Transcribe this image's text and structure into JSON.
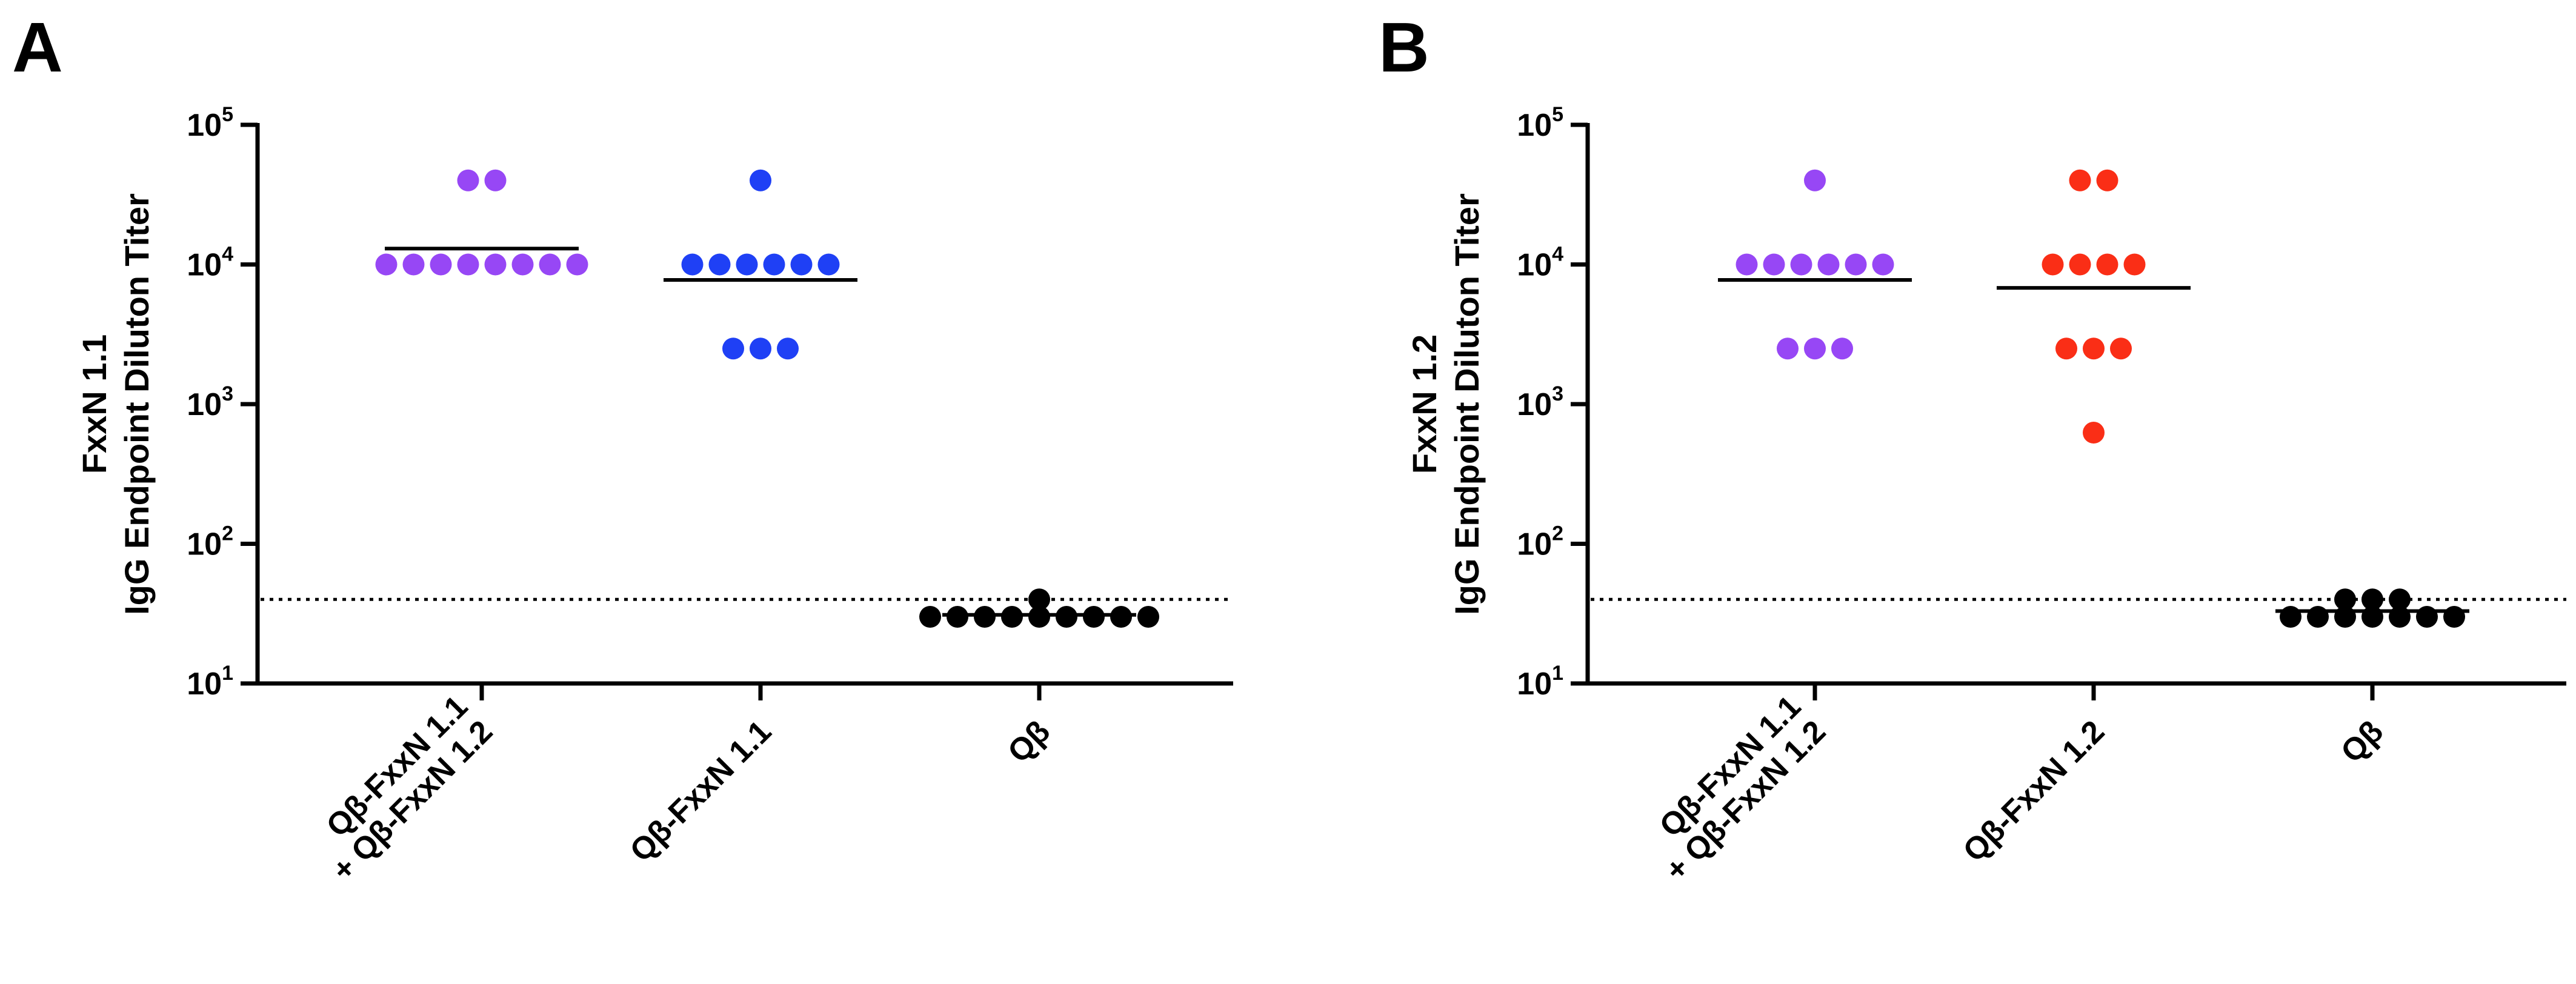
{
  "figure": {
    "colors": {
      "purple": "#9747f5",
      "blue": "#1f40f5",
      "red": "#fa2e16",
      "black": "#000000"
    }
  },
  "chart_data": [
    {
      "type": "scatter",
      "panel_label": "A",
      "ylabel_lines": [
        "FxxN 1.1",
        "IgG Endpoint Diluton Titer"
      ],
      "yscale": "log",
      "ylim": [
        10,
        100000
      ],
      "yticks": [
        {
          "base": "10",
          "exp": "1"
        },
        {
          "base": "10",
          "exp": "2"
        },
        {
          "base": "10",
          "exp": "3"
        },
        {
          "base": "10",
          "exp": "4"
        },
        {
          "base": "10",
          "exp": "5"
        }
      ],
      "detection_limit": 40,
      "grid": false,
      "legend": "none",
      "categories": [
        {
          "label_lines": [
            "Qβ-FxxN 1.1",
            "+ Qβ-FxxN 1.2"
          ],
          "color": "purple",
          "values": [
            40000,
            40000,
            10000,
            10000,
            10000,
            10000,
            10000,
            10000,
            10000,
            10000
          ],
          "mean": 13000
        },
        {
          "label_lines": [
            "Qβ-FxxN 1.1"
          ],
          "color": "blue",
          "values": [
            40000,
            10000,
            10000,
            10000,
            10000,
            10000,
            10000,
            2500,
            2500,
            2500
          ],
          "mean": 7750
        },
        {
          "label_lines": [
            "Qβ"
          ],
          "color": "black",
          "values": [
            40,
            30,
            30,
            30,
            30,
            30,
            30,
            30,
            30,
            30
          ],
          "mean": 31
        }
      ]
    },
    {
      "type": "scatter",
      "panel_label": "B",
      "ylabel_lines": [
        "FxxN 1.2",
        "IgG Endpoint Diluton Titer"
      ],
      "yscale": "log",
      "ylim": [
        10,
        100000
      ],
      "yticks": [
        {
          "base": "10",
          "exp": "1"
        },
        {
          "base": "10",
          "exp": "2"
        },
        {
          "base": "10",
          "exp": "3"
        },
        {
          "base": "10",
          "exp": "4"
        },
        {
          "base": "10",
          "exp": "5"
        }
      ],
      "detection_limit": 40,
      "grid": false,
      "legend": "none",
      "categories": [
        {
          "label_lines": [
            "Qβ-FxxN 1.1",
            "+ Qβ-FxxN 1.2"
          ],
          "color": "purple",
          "values": [
            40000,
            10000,
            10000,
            10000,
            10000,
            10000,
            10000,
            2500,
            2500,
            2500
          ],
          "mean": 7750
        },
        {
          "label_lines": [
            "Qβ-FxxN 1.2"
          ],
          "color": "red",
          "values": [
            40000,
            40000,
            10000,
            10000,
            10000,
            10000,
            2500,
            2500,
            2500,
            625
          ],
          "mean": 6800
        },
        {
          "label_lines": [
            "Qβ"
          ],
          "color": "black",
          "values": [
            40,
            40,
            40,
            30,
            30,
            30,
            30,
            30,
            30,
            30
          ],
          "mean": 33
        }
      ]
    }
  ]
}
